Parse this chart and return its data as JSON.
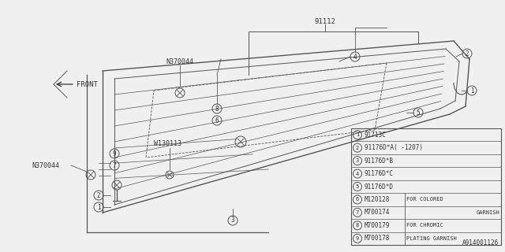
{
  "bg_color": "#f0f0f0",
  "line_color": "#555555",
  "text_color": "#333333",
  "title_label": "91112",
  "footer_text": "A914001126",
  "front_label": "FRONT",
  "N370044_top_label": "N370044",
  "N370044_left_label": "N370044",
  "W130113_label": "W130113",
  "legend_items": [
    {
      "num": "1",
      "code": "91713C",
      "note1": "",
      "note2": ""
    },
    {
      "num": "2",
      "code": "91176D*A( -1207)",
      "note1": "",
      "note2": ""
    },
    {
      "num": "3",
      "code": "91176D*B",
      "note1": "",
      "note2": ""
    },
    {
      "num": "4",
      "code": "91176D*C",
      "note1": "",
      "note2": ""
    },
    {
      "num": "5",
      "code": "91176D*D",
      "note1": "",
      "note2": ""
    },
    {
      "num": "6",
      "code": "M120128",
      "note1": "FOR COLORED",
      "note2": ""
    },
    {
      "num": "7",
      "code": "M700174",
      "note1": "",
      "note2": "GARNISH"
    },
    {
      "num": "8",
      "code": "M700179",
      "note1": "FOR CHROMIC",
      "note2": ""
    },
    {
      "num": "9",
      "code": "M700178",
      "note1": "PLATING GARNISH",
      "note2": ""
    }
  ]
}
